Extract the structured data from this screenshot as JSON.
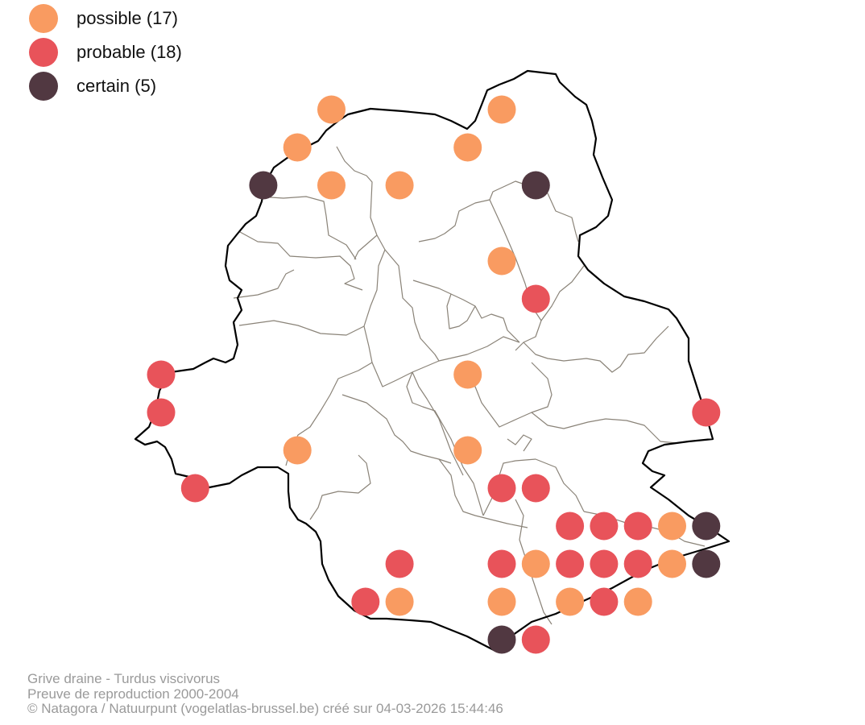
{
  "legend": {
    "items": [
      {
        "label": "possible (17)",
        "color": "#f99b61"
      },
      {
        "label": "probable (18)",
        "color": "#e8535a"
      },
      {
        "label": "certain (5)",
        "color": "#513841"
      }
    ]
  },
  "footer": {
    "line1": "Grive draine - Turdus viscivorus",
    "line2": "Preuve de reproduction 2000-2004",
    "line3": "© Natagora / Natuurpunt (vogelatlas-brussel.be) créé sur 04-03-2026 15:44:46"
  },
  "colors": {
    "possible": "#f99b61",
    "probable": "#e8535a",
    "certain": "#513841",
    "region_border": "#000000",
    "commune_border": "#8a8378"
  },
  "observations": [
    {
      "col": 9,
      "row": 2,
      "status": "possible"
    },
    {
      "col": 14,
      "row": 2,
      "status": "possible"
    },
    {
      "col": 8,
      "row": 3,
      "status": "possible"
    },
    {
      "col": 13,
      "row": 3,
      "status": "possible"
    },
    {
      "col": 7,
      "row": 4,
      "status": "certain"
    },
    {
      "col": 9,
      "row": 4,
      "status": "possible"
    },
    {
      "col": 11,
      "row": 4,
      "status": "possible"
    },
    {
      "col": 15,
      "row": 4,
      "status": "certain"
    },
    {
      "col": 14,
      "row": 6,
      "status": "possible"
    },
    {
      "col": 15,
      "row": 7,
      "status": "probable"
    },
    {
      "col": 4,
      "row": 9,
      "status": "probable"
    },
    {
      "col": 13,
      "row": 9,
      "status": "possible"
    },
    {
      "col": 4,
      "row": 10,
      "status": "probable"
    },
    {
      "col": 20,
      "row": 10,
      "status": "probable"
    },
    {
      "col": 8,
      "row": 11,
      "status": "possible"
    },
    {
      "col": 13,
      "row": 11,
      "status": "possible"
    },
    {
      "col": 5,
      "row": 12,
      "status": "probable"
    },
    {
      "col": 14,
      "row": 12,
      "status": "probable"
    },
    {
      "col": 15,
      "row": 12,
      "status": "probable"
    },
    {
      "col": 16,
      "row": 13,
      "status": "probable"
    },
    {
      "col": 17,
      "row": 13,
      "status": "probable"
    },
    {
      "col": 18,
      "row": 13,
      "status": "probable"
    },
    {
      "col": 19,
      "row": 13,
      "status": "possible"
    },
    {
      "col": 20,
      "row": 13,
      "status": "certain"
    },
    {
      "col": 11,
      "row": 14,
      "status": "probable"
    },
    {
      "col": 14,
      "row": 14,
      "status": "probable"
    },
    {
      "col": 15,
      "row": 14,
      "status": "possible"
    },
    {
      "col": 16,
      "row": 14,
      "status": "probable"
    },
    {
      "col": 17,
      "row": 14,
      "status": "probable"
    },
    {
      "col": 18,
      "row": 14,
      "status": "probable"
    },
    {
      "col": 19,
      "row": 14,
      "status": "possible"
    },
    {
      "col": 20,
      "row": 14,
      "status": "certain"
    },
    {
      "col": 10,
      "row": 15,
      "status": "probable"
    },
    {
      "col": 11,
      "row": 15,
      "status": "possible"
    },
    {
      "col": 14,
      "row": 15,
      "status": "possible"
    },
    {
      "col": 16,
      "row": 15,
      "status": "possible"
    },
    {
      "col": 17,
      "row": 15,
      "status": "probable"
    },
    {
      "col": 18,
      "row": 15,
      "status": "possible"
    },
    {
      "col": 14,
      "row": 16,
      "status": "certain"
    },
    {
      "col": 15,
      "row": 16,
      "status": "probable"
    }
  ]
}
